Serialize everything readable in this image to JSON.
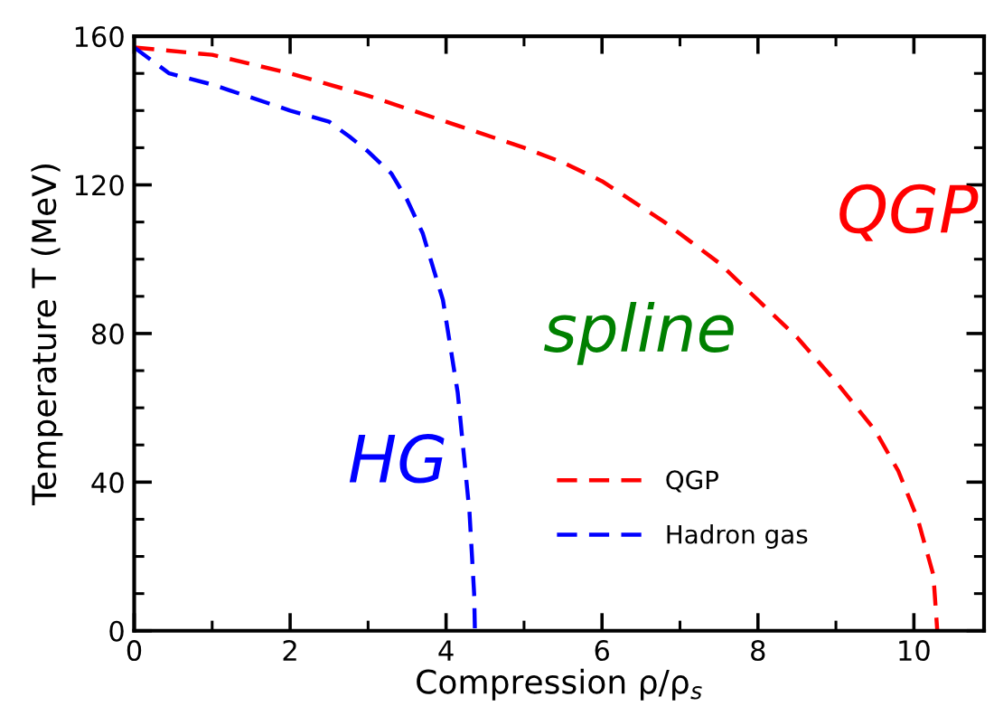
{
  "chart_data": {
    "type": "line",
    "xlabel": "Compression ρ/ρ$_{s}$",
    "ylabel": "Temperature T (MeV)",
    "xlim": [
      0,
      10.9
    ],
    "ylim": [
      0,
      160
    ],
    "xticks": [
      0,
      2,
      4,
      6,
      8,
      10
    ],
    "yticks": [
      0,
      40,
      80,
      120,
      160
    ],
    "grid": false,
    "legend": "bottom right",
    "line_style": "dashed",
    "marker": "none",
    "series": [
      {
        "name": "QGP",
        "color": "#ff0000",
        "x": [
          0,
          1,
          2,
          3,
          4,
          5,
          5.5,
          6,
          6.8,
          7.5,
          8,
          8.5,
          9,
          9.5,
          9.8,
          10.05,
          10.25,
          10.3
        ],
        "values": [
          157,
          155,
          150,
          144,
          137,
          130,
          126,
          121,
          110,
          99,
          89,
          79,
          67,
          54,
          43,
          30,
          15,
          0
        ]
      },
      {
        "name": "Hadron gas",
        "color": "#0000ff",
        "x": [
          0,
          0.45,
          1,
          2,
          2.5,
          2.76,
          3.0,
          3.3,
          3.5,
          3.7,
          3.96,
          4.15,
          4.3,
          4.36,
          4.37
        ],
        "values": [
          157,
          150,
          147,
          140,
          137,
          133,
          129,
          123,
          116,
          107,
          89,
          64,
          32,
          10,
          0
        ]
      }
    ],
    "annotations": [
      "QGP",
      "spline",
      "HG"
    ]
  }
}
